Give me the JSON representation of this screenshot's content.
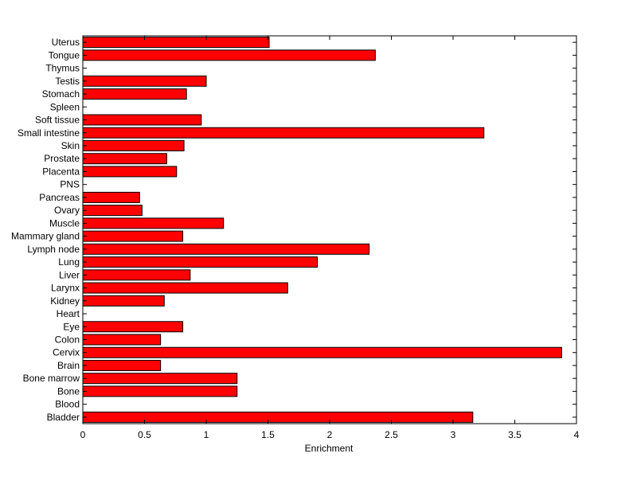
{
  "chart_data": {
    "type": "bar",
    "orientation": "horizontal",
    "categories": [
      "Uterus",
      "Tongue",
      "Thymus",
      "Testis",
      "Stomach",
      "Spleen",
      "Soft tissue",
      "Small intestine",
      "Skin",
      "Prostate",
      "Placenta",
      "PNS",
      "Pancreas",
      "Ovary",
      "Muscle",
      "Mammary gland",
      "Lymph node",
      "Lung",
      "Liver",
      "Larynx",
      "Kidney",
      "Heart",
      "Eye",
      "Colon",
      "Cervix",
      "Brain",
      "Bone marrow",
      "Bone",
      "Blood",
      "Bladder"
    ],
    "values": [
      1.51,
      2.37,
      0,
      1.0,
      0.84,
      0,
      0.96,
      3.25,
      0.82,
      0.68,
      0.76,
      0,
      0.46,
      0.48,
      1.14,
      0.81,
      2.32,
      1.9,
      0.87,
      1.66,
      0.66,
      0,
      0.81,
      0.63,
      3.88,
      0.63,
      1.25,
      1.25,
      0,
      3.16
    ],
    "xlabel": "Enrichment",
    "ylabel": "",
    "xlim": [
      0,
      4
    ],
    "xticks": [
      "0",
      "0.5",
      "1",
      "1.5",
      "2",
      "2.5",
      "3",
      "3.5",
      "4"
    ],
    "grid": false,
    "bar_color": "#ff0000",
    "edge_color": "#000000"
  }
}
